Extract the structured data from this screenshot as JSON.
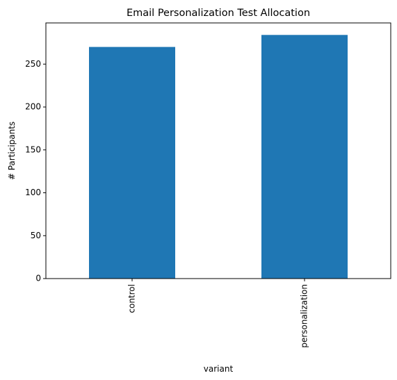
{
  "chart_data": {
    "type": "bar",
    "title": "Email Personalization Test Allocation",
    "xlabel": "variant",
    "ylabel": "# Participants",
    "categories": [
      "control",
      "personalization"
    ],
    "values": [
      270,
      284
    ],
    "ylim": [
      0,
      298
    ],
    "yticks": [
      0,
      50,
      100,
      150,
      200,
      250
    ],
    "grid": false,
    "legend": "none",
    "bar_color": "#1f77b4"
  }
}
